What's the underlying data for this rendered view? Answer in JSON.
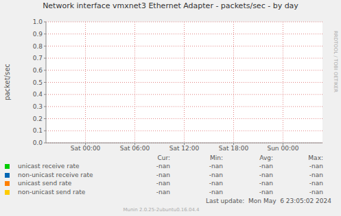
{
  "chart_data": {
    "type": "line",
    "title": "Network interface vmxnet3 Ethernet Adapter - packets/sec - by day",
    "y_label": "packet/sec",
    "x": [
      0,
      6,
      12,
      18,
      24
    ],
    "xlim": [
      -4.8,
      28.8
    ],
    "xticks": [
      {
        "value": 0,
        "label": "Sat 00:00"
      },
      {
        "value": 6,
        "label": "Sat 06:00"
      },
      {
        "value": 12,
        "label": "Sat 12:00"
      },
      {
        "value": 18,
        "label": "Sat 18:00"
      },
      {
        "value": 24,
        "label": "Sun 00:00"
      }
    ],
    "ylim": [
      0,
      1
    ],
    "yticks": [
      {
        "value": 0,
        "label": "0.0"
      },
      0.1,
      0.2,
      0.3,
      0.4,
      0.5,
      0.6,
      0.7,
      0.8,
      0.9,
      {
        "value": 1,
        "label": "1.0"
      }
    ],
    "grid": true,
    "legend_columns": [
      "Cur:",
      "Min:",
      "Avg:",
      "Max:"
    ],
    "series": [
      {
        "name": "unicast receive rate",
        "color": "#00cc00",
        "values": [
          null,
          null,
          null,
          null,
          null
        ],
        "stats": [
          "-nan",
          "-nan",
          "-nan",
          "-nan"
        ]
      },
      {
        "name": "non-unicast receive rate",
        "color": "#0066b3",
        "values": [
          null,
          null,
          null,
          null,
          null
        ],
        "stats": [
          "-nan",
          "-nan",
          "-nan",
          "-nan"
        ]
      },
      {
        "name": "unicast send rate",
        "color": "#ff8000",
        "values": [
          null,
          null,
          null,
          null,
          null
        ],
        "stats": [
          "-nan",
          "-nan",
          "-nan",
          "-nan"
        ]
      },
      {
        "name": "non-unicast send rate",
        "color": "#ffcc00",
        "values": [
          null,
          null,
          null,
          null,
          null
        ],
        "stats": [
          "-nan",
          "-nan",
          "-nan",
          "-nan"
        ]
      }
    ],
    "last_update": "Last update:  Mon May  6 23:05:02 2024",
    "footer": "Munin 2.0.25-2ubuntu0.16.04.4",
    "side_text": "RRDTOOL / TOBI OETIKER"
  }
}
